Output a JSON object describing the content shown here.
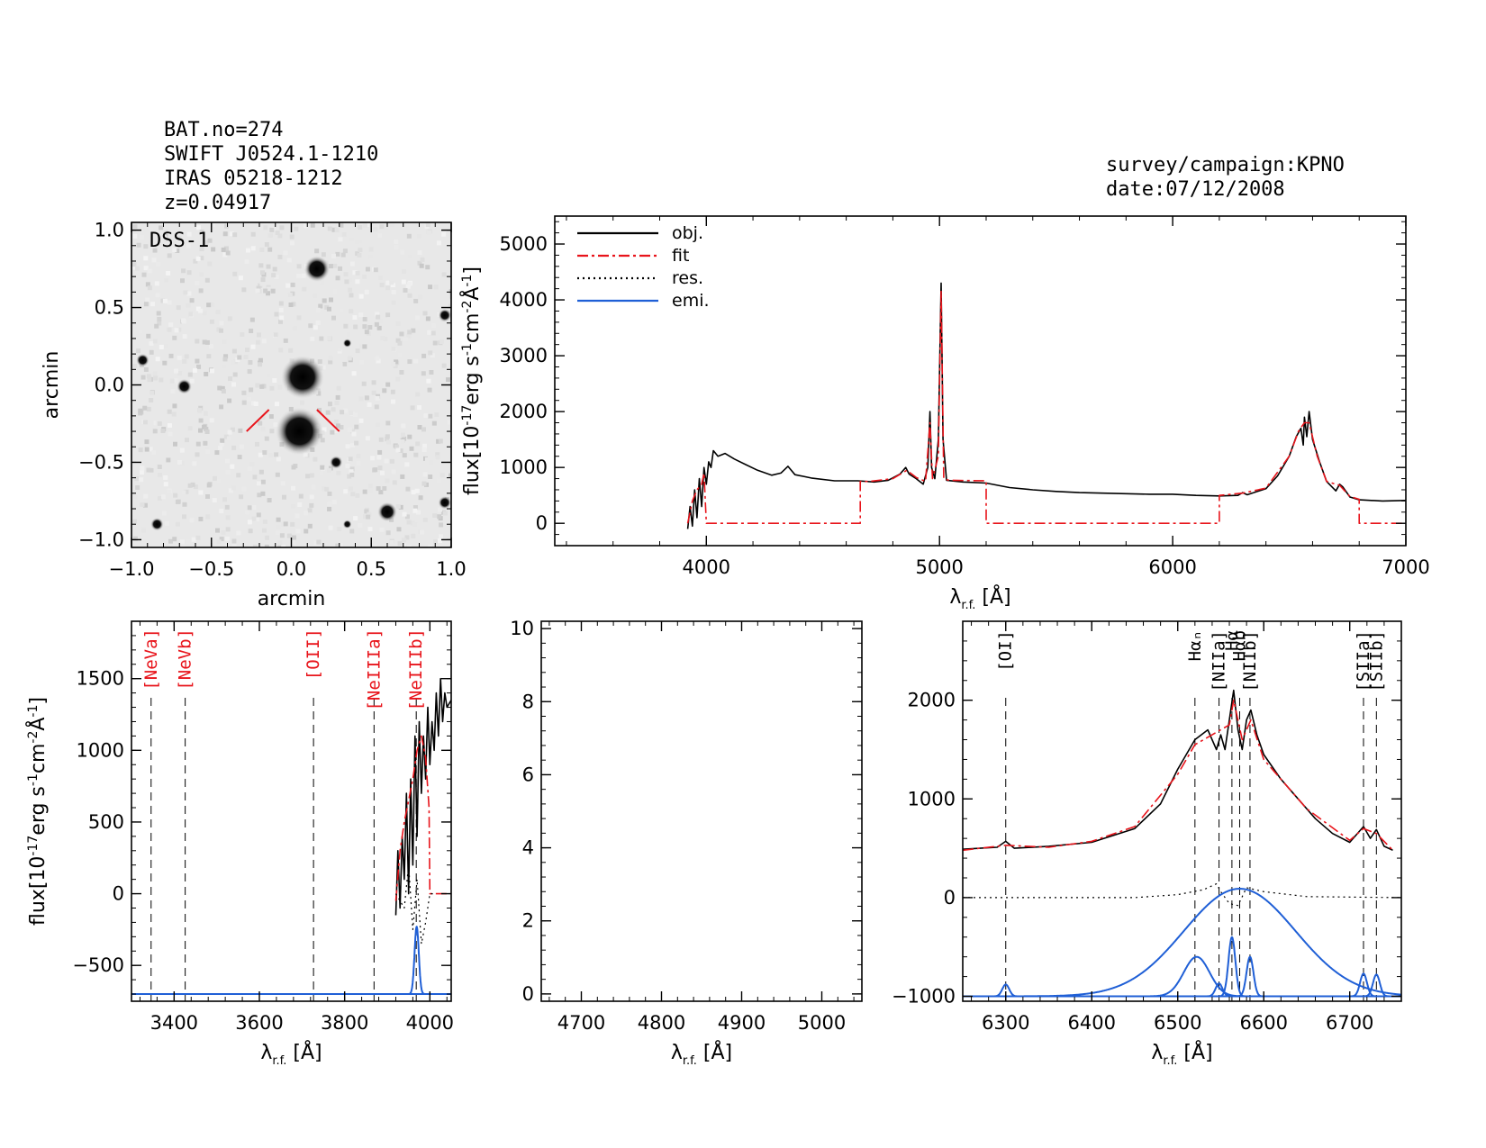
{
  "header": {
    "left": [
      "BAT.no=274",
      "SWIFT J0524.1-1210",
      "IRAS 05218-1212",
      "z=0.04917"
    ],
    "right": [
      "survey/campaign:KPNO",
      "date:07/12/2008"
    ]
  },
  "colors": {
    "obj": "#000000",
    "fit": "#e8141b",
    "res": "#000000",
    "emi": "#1f5fd6"
  },
  "chart_data": [
    {
      "id": "image",
      "type": "heatmap",
      "survey_label": "DSS-1",
      "xlabel": "arcmin",
      "ylabel": "arcmin",
      "xlim": [
        -1.0,
        1.0
      ],
      "ylim": [
        -1.05,
        1.05
      ],
      "xticks": [
        -1.0,
        -0.5,
        0.0,
        0.5,
        1.0
      ],
      "yticks": [
        -1.0,
        -0.5,
        0.0,
        0.5,
        1.0
      ],
      "xtick_labels": [
        "−1.0",
        "−0.5",
        "0.0",
        "0.5",
        "1.0"
      ],
      "ytick_labels": [
        "−1.0",
        "−0.5",
        "0.0",
        "0.5",
        "1.0"
      ],
      "sources": [
        {
          "x": 0.05,
          "y": -0.3,
          "r": 0.11
        },
        {
          "x": 0.07,
          "y": 0.05,
          "r": 0.1
        },
        {
          "x": 0.16,
          "y": 0.75,
          "r": 0.06
        },
        {
          "x": -0.67,
          "y": -0.01,
          "r": 0.035
        },
        {
          "x": -0.93,
          "y": 0.16,
          "r": 0.03
        },
        {
          "x": 0.6,
          "y": -0.82,
          "r": 0.045
        },
        {
          "x": -0.84,
          "y": -0.9,
          "r": 0.03
        },
        {
          "x": 0.96,
          "y": 0.45,
          "r": 0.03
        },
        {
          "x": 0.96,
          "y": -0.76,
          "r": 0.03
        },
        {
          "x": 0.28,
          "y": -0.5,
          "r": 0.03
        },
        {
          "x": 0.35,
          "y": 0.27,
          "r": 0.02
        },
        {
          "x": 0.35,
          "y": -0.9,
          "r": 0.02
        }
      ],
      "markers": [
        {
          "x1": -0.28,
          "y1": -0.3,
          "x2": -0.14,
          "y2": -0.16
        },
        {
          "x1": 0.3,
          "y1": -0.3,
          "x2": 0.16,
          "y2": -0.16
        }
      ]
    },
    {
      "id": "full",
      "type": "line",
      "xlabel": "λ",
      "xlabel_sub": "r.f.",
      "xlabel_unit": " [Å]",
      "ylabel": "flux[10",
      "ylabel_exp": "-17",
      "ylabel_rest": "erg s",
      "ylabel_exp2": "-1",
      "ylabel_rest2": "cm",
      "ylabel_exp3": "-2",
      "ylabel_rest3": "Å",
      "ylabel_exp4": "-1",
      "ylabel_end": "]",
      "xlim": [
        3350,
        7000
      ],
      "ylim": [
        -400,
        5500
      ],
      "xticks": [
        4000,
        5000,
        6000,
        7000
      ],
      "yticks": [
        0,
        1000,
        2000,
        3000,
        4000,
        5000
      ],
      "legend": [
        "obj.",
        "fit",
        "res.",
        "emi."
      ],
      "legend_position": "top-left",
      "obj": [
        [
          3920,
          -100
        ],
        [
          3930,
          300
        ],
        [
          3940,
          -50
        ],
        [
          3950,
          600
        ],
        [
          3960,
          100
        ],
        [
          3970,
          800
        ],
        [
          3980,
          300
        ],
        [
          3990,
          1000
        ],
        [
          4000,
          700
        ],
        [
          4010,
          1100
        ],
        [
          4020,
          1000
        ],
        [
          4030,
          1300
        ],
        [
          4050,
          1200
        ],
        [
          4080,
          1250
        ],
        [
          4120,
          1150
        ],
        [
          4170,
          1050
        ],
        [
          4220,
          950
        ],
        [
          4280,
          860
        ],
        [
          4320,
          900
        ],
        [
          4350,
          1020
        ],
        [
          4380,
          870
        ],
        [
          4450,
          810
        ],
        [
          4550,
          760
        ],
        [
          4650,
          760
        ],
        [
          4720,
          740
        ],
        [
          4780,
          770
        ],
        [
          4830,
          880
        ],
        [
          4855,
          1000
        ],
        [
          4870,
          880
        ],
        [
          4900,
          800
        ],
        [
          4930,
          700
        ],
        [
          4950,
          1000
        ],
        [
          4959,
          2000
        ],
        [
          4966,
          1000
        ],
        [
          4980,
          800
        ],
        [
          4995,
          1500
        ],
        [
          5007,
          4300
        ],
        [
          5015,
          1500
        ],
        [
          5030,
          770
        ],
        [
          5100,
          740
        ],
        [
          5200,
          720
        ],
        [
          5300,
          640
        ],
        [
          5400,
          600
        ],
        [
          5500,
          570
        ],
        [
          5600,
          550
        ],
        [
          5700,
          540
        ],
        [
          5800,
          530
        ],
        [
          5900,
          520
        ],
        [
          6000,
          520
        ],
        [
          6100,
          500
        ],
        [
          6200,
          490
        ],
        [
          6280,
          500
        ],
        [
          6300,
          550
        ],
        [
          6320,
          510
        ],
        [
          6400,
          620
        ],
        [
          6450,
          850
        ],
        [
          6500,
          1200
        ],
        [
          6530,
          1550
        ],
        [
          6550,
          1700
        ],
        [
          6560,
          1400
        ],
        [
          6565,
          1900
        ],
        [
          6575,
          1550
        ],
        [
          6585,
          2000
        ],
        [
          6600,
          1500
        ],
        [
          6630,
          1100
        ],
        [
          6660,
          750
        ],
        [
          6700,
          580
        ],
        [
          6716,
          700
        ],
        [
          6730,
          650
        ],
        [
          6760,
          470
        ],
        [
          6800,
          420
        ],
        [
          6900,
          400
        ],
        [
          7000,
          410
        ]
      ],
      "fit": [
        [
          3920,
          0
        ],
        [
          3940,
          400
        ],
        [
          3960,
          600
        ],
        [
          3980,
          700
        ],
        [
          3990,
          900
        ],
        [
          4000,
          0
        ],
        [
          4660,
          0
        ],
        [
          4660,
          750
        ],
        [
          4700,
          750
        ],
        [
          4800,
          800
        ],
        [
          4860,
          950
        ],
        [
          4900,
          820
        ],
        [
          4940,
          750
        ],
        [
          4959,
          1800
        ],
        [
          4970,
          800
        ],
        [
          4995,
          1200
        ],
        [
          5007,
          4150
        ],
        [
          5018,
          800
        ],
        [
          5040,
          770
        ],
        [
          5200,
          760
        ],
        [
          5200,
          0
        ],
        [
          6200,
          0
        ],
        [
          6200,
          500
        ],
        [
          6300,
          540
        ],
        [
          6400,
          630
        ],
        [
          6500,
          1200
        ],
        [
          6540,
          1650
        ],
        [
          6565,
          1800
        ],
        [
          6585,
          1800
        ],
        [
          6620,
          1200
        ],
        [
          6660,
          750
        ],
        [
          6716,
          680
        ],
        [
          6760,
          480
        ],
        [
          6800,
          430
        ],
        [
          6800,
          0
        ],
        [
          7000,
          0
        ]
      ]
    },
    {
      "id": "zoom1",
      "type": "line",
      "xlabel": "λ",
      "xlabel_sub": "r.f.",
      "xlabel_unit": " [Å]",
      "ylabel": "flux[10",
      "ylabel_exp": "-17",
      "ylabel_rest": "erg s",
      "ylabel_exp2": "-1",
      "ylabel_rest2": "cm",
      "ylabel_exp3": "-2",
      "ylabel_rest3": "Å",
      "ylabel_exp4": "-1",
      "ylabel_end": "]",
      "xlim": [
        3300,
        4050
      ],
      "ylim": [
        -750,
        1900
      ],
      "xticks": [
        3400,
        3600,
        3800,
        4000
      ],
      "yticks": [
        -500,
        0,
        500,
        1000,
        1500
      ],
      "ytick_labels": [
        "−500",
        "0",
        "500",
        "1000",
        "1500"
      ],
      "lines": [
        {
          "name": "[NeVa]",
          "x": 3346
        },
        {
          "name": "[NeVb]",
          "x": 3426
        },
        {
          "name": "[OII]",
          "x": 3727
        },
        {
          "name": "[NeIIIa]",
          "x": 3869
        },
        {
          "name": "[NeIIIb]",
          "x": 3968
        }
      ],
      "obj": [
        [
          3920,
          -150
        ],
        [
          3925,
          300
        ],
        [
          3930,
          -100
        ],
        [
          3935,
          400
        ],
        [
          3940,
          100
        ],
        [
          3945,
          700
        ],
        [
          3950,
          0
        ],
        [
          3955,
          800
        ],
        [
          3960,
          200
        ],
        [
          3965,
          1100
        ],
        [
          3970,
          400
        ],
        [
          3975,
          1200
        ],
        [
          3980,
          700
        ],
        [
          3985,
          1100
        ],
        [
          3990,
          800
        ],
        [
          3995,
          1300
        ],
        [
          4000,
          900
        ],
        [
          4005,
          1200
        ],
        [
          4010,
          1000
        ],
        [
          4015,
          1400
        ],
        [
          4020,
          1100
        ],
        [
          4025,
          1500
        ],
        [
          4030,
          1200
        ],
        [
          4035,
          1400
        ],
        [
          4040,
          1300
        ],
        [
          4050,
          1350
        ]
      ],
      "fit": [
        [
          3920,
          -50
        ],
        [
          3930,
          300
        ],
        [
          3940,
          500
        ],
        [
          3950,
          650
        ],
        [
          3960,
          800
        ],
        [
          3970,
          1000
        ],
        [
          3980,
          1100
        ],
        [
          3990,
          950
        ],
        [
          3998,
          600
        ],
        [
          4000,
          0
        ],
        [
          4050,
          0
        ]
      ],
      "res": [
        [
          3920,
          0
        ],
        [
          3940,
          -100
        ],
        [
          3950,
          200
        ],
        [
          3960,
          -250
        ],
        [
          3970,
          100
        ],
        [
          3980,
          -350
        ],
        [
          3990,
          -200
        ],
        [
          4000,
          0
        ],
        [
          4010,
          0
        ]
      ],
      "emi_base": -700,
      "emi": [
        {
          "center": 3969,
          "height": 470,
          "sigma": 5
        }
      ]
    },
    {
      "id": "zoom2",
      "type": "line",
      "xlabel": "λ",
      "xlabel_sub": "r.f.",
      "xlabel_unit": " [Å]",
      "xlim": [
        4650,
        5050
      ],
      "ylim": [
        -0.2,
        10.2
      ],
      "xticks": [
        4700,
        4800,
        4900,
        5000
      ],
      "yticks": [
        0,
        2,
        4,
        6,
        8,
        10
      ]
    },
    {
      "id": "zoom3",
      "type": "line",
      "xlabel": "λ",
      "xlabel_sub": "r.f.",
      "xlabel_unit": " [Å]",
      "xlim": [
        6250,
        6760
      ],
      "ylim": [
        -1050,
        2800
      ],
      "xticks": [
        6300,
        6400,
        6500,
        6600,
        6700
      ],
      "yticks": [
        -1000,
        0,
        1000,
        2000
      ],
      "ytick_labels": [
        "−1000",
        "0",
        "1000",
        "2000"
      ],
      "lines": [
        {
          "name": "[OI]",
          "x": 6300
        },
        {
          "name": "Hαₙ",
          "x": 6520
        },
        {
          "name": "[NIIa]",
          "x": 6548
        },
        {
          "name": "Hα",
          "x": 6563
        },
        {
          "name": "Hαb",
          "x": 6572
        },
        {
          "name": "[NIIb]",
          "x": 6584
        },
        {
          "name": "[SIIa]",
          "x": 6716
        },
        {
          "name": "[SIIb]",
          "x": 6731
        }
      ],
      "obj": [
        [
          6250,
          490
        ],
        [
          6270,
          500
        ],
        [
          6290,
          510
        ],
        [
          6300,
          570
        ],
        [
          6310,
          500
        ],
        [
          6350,
          520
        ],
        [
          6400,
          560
        ],
        [
          6450,
          700
        ],
        [
          6480,
          950
        ],
        [
          6500,
          1300
        ],
        [
          6520,
          1600
        ],
        [
          6535,
          1700
        ],
        [
          6545,
          1500
        ],
        [
          6550,
          1650
        ],
        [
          6555,
          1500
        ],
        [
          6560,
          1800
        ],
        [
          6565,
          2100
        ],
        [
          6570,
          1700
        ],
        [
          6575,
          1500
        ],
        [
          6580,
          1800
        ],
        [
          6585,
          1900
        ],
        [
          6592,
          1650
        ],
        [
          6600,
          1450
        ],
        [
          6620,
          1200
        ],
        [
          6640,
          1000
        ],
        [
          6660,
          800
        ],
        [
          6680,
          650
        ],
        [
          6700,
          560
        ],
        [
          6716,
          720
        ],
        [
          6724,
          600
        ],
        [
          6731,
          690
        ],
        [
          6740,
          520
        ],
        [
          6750,
          480
        ]
      ],
      "fit": [
        [
          6250,
          480
        ],
        [
          6300,
          530
        ],
        [
          6350,
          510
        ],
        [
          6400,
          570
        ],
        [
          6450,
          720
        ],
        [
          6500,
          1250
        ],
        [
          6520,
          1550
        ],
        [
          6540,
          1650
        ],
        [
          6560,
          1750
        ],
        [
          6565,
          2000
        ],
        [
          6575,
          1600
        ],
        [
          6585,
          1800
        ],
        [
          6600,
          1400
        ],
        [
          6650,
          900
        ],
        [
          6700,
          580
        ],
        [
          6716,
          700
        ],
        [
          6731,
          650
        ],
        [
          6750,
          480
        ]
      ],
      "res": [
        [
          6250,
          0
        ],
        [
          6350,
          0
        ],
        [
          6450,
          0
        ],
        [
          6500,
          30
        ],
        [
          6530,
          80
        ],
        [
          6545,
          140
        ],
        [
          6550,
          60
        ],
        [
          6560,
          -60
        ],
        [
          6570,
          -80
        ],
        [
          6580,
          100
        ],
        [
          6600,
          60
        ],
        [
          6650,
          10
        ],
        [
          6760,
          0
        ]
      ],
      "emi_base": -1000,
      "emi": [
        {
          "center": 6300,
          "height": 120,
          "sigma": 4
        },
        {
          "center": 6522,
          "height": 400,
          "sigma": 15
        },
        {
          "center": 6548,
          "height": 130,
          "sigma": 4
        },
        {
          "center": 6563,
          "height": 600,
          "sigma": 4
        },
        {
          "center": 6572,
          "height": 1090,
          "sigma": 65
        },
        {
          "center": 6584,
          "height": 400,
          "sigma": 4
        },
        {
          "center": 6716,
          "height": 230,
          "sigma": 4
        },
        {
          "center": 6731,
          "height": 220,
          "sigma": 4
        }
      ]
    }
  ]
}
